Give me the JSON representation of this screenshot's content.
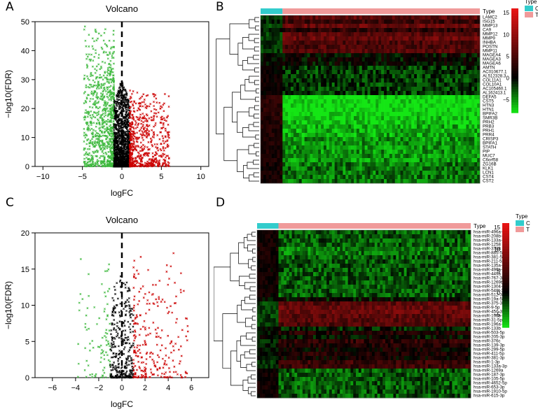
{
  "panels": [
    {
      "letter": "A"
    },
    {
      "letter": "B"
    },
    {
      "letter": "C"
    },
    {
      "letter": "D"
    }
  ],
  "chart_data": [
    {
      "panel": "A",
      "type": "scatter",
      "title": "Volcano",
      "xlabel": "logFC",
      "ylabel": "−log10(FDR)",
      "xlim": [
        -11,
        11
      ],
      "ylim": [
        0,
        50
      ],
      "xticks": [
        -10,
        -5,
        0,
        5,
        10
      ],
      "yticks": [
        0,
        10,
        20,
        30,
        40,
        50
      ],
      "threshold_line_x": 0,
      "colors": {
        "down": "#3cb83c",
        "ns": "#000000",
        "up": "#cc0000"
      },
      "series": [
        {
          "key": "down",
          "count": 900,
          "x_range": [
            -4.8,
            -1.0
          ],
          "y_max": 50
        },
        {
          "key": "ns",
          "count": 1300,
          "x_range": [
            -1.0,
            1.0
          ],
          "y_max": 30
        },
        {
          "key": "up",
          "count": 600,
          "x_range": [
            1.0,
            6.0
          ],
          "y_max": 28
        }
      ]
    },
    {
      "panel": "B",
      "type": "heatmap",
      "legend_title": "Type",
      "groups": [
        {
          "label": "C",
          "color": "#33cccc"
        },
        {
          "label": "T",
          "color": "#f09a9a"
        }
      ],
      "header_label": "Type",
      "colorbar_ticks": [
        15,
        10,
        5,
        0,
        -5
      ],
      "colorbar_range": [
        -8,
        16
      ],
      "rows": [
        "LAMC2",
        "ISG15",
        "MMP13",
        "CA9",
        "MMP12",
        "MMP9",
        "INHBA",
        "POSTN",
        "MMP11",
        "MAGEA4",
        "MAGEA3",
        "MAGEA6",
        "AMTN",
        "AC010677.1",
        "AL512328.3",
        "COL11A1",
        "COL10A1",
        "AC105460.1",
        "AL162413.1",
        "DEFA5",
        "CST5",
        "HTN3",
        "HTN1",
        "BPIFA2",
        "SMR3B",
        "PRH2",
        "PRB3",
        "PRH1",
        "PRR4",
        "CRISP3",
        "BPIFA1",
        "STATH",
        "PIP",
        "MUC7",
        "C6orf58",
        "ZG16B",
        "KLK1",
        "LCN1",
        "CST4",
        "CST2"
      ],
      "row_profile": [
        6,
        4,
        7,
        3,
        6,
        7,
        5,
        5,
        6,
        0,
        0,
        0,
        -2,
        -2,
        -2,
        -2,
        -2,
        -2,
        -2,
        -8,
        -8,
        -8,
        -8,
        -8,
        -7,
        -7,
        -6,
        -6,
        -6,
        -5,
        -5,
        -5,
        -5,
        -5,
        -5,
        -4,
        -4,
        -4,
        -4,
        -4
      ]
    },
    {
      "panel": "C",
      "type": "scatter",
      "title": "Volcano",
      "xlabel": "logFC",
      "ylabel": "−log10(FDR)",
      "xlim": [
        -7.5,
        7.5
      ],
      "ylim": [
        0,
        20
      ],
      "xticks": [
        -6,
        -4,
        -2,
        0,
        2,
        4,
        6
      ],
      "yticks": [
        0,
        5,
        10,
        15,
        20
      ],
      "threshold_line_x": 0,
      "colors": {
        "down": "#3cb83c",
        "ns": "#000000",
        "up": "#cc0000"
      },
      "series": [
        {
          "key": "down",
          "count": 90,
          "x_range": [
            -3.8,
            -1.0
          ],
          "y_max": 19
        },
        {
          "key": "ns",
          "count": 320,
          "x_range": [
            -1.0,
            1.0
          ],
          "y_max": 15
        },
        {
          "key": "up",
          "count": 260,
          "x_range": [
            1.0,
            5.8
          ],
          "y_max": 19
        }
      ]
    },
    {
      "panel": "D",
      "type": "heatmap",
      "legend_title": "Type",
      "groups": [
        {
          "label": "C",
          "color": "#33cccc"
        },
        {
          "label": "T",
          "color": "#f09a9a"
        }
      ],
      "header_label": "Type",
      "colorbar_ticks": [
        15,
        10,
        5,
        0,
        -5
      ],
      "colorbar_range": [
        -8,
        16
      ],
      "rows": [
        "hsa-miR-496a-5p",
        "hsa-miR-208b-3p",
        "hsa-miR-133a-5p",
        "hsa-miR-1258",
        "hsa-miR-3788",
        "hsa-miR-885-5p",
        "hsa-miR-381-5p",
        "hsa-miR-211-5p",
        "hsa-miR-135a-5p",
        "hsa-miR-496a-3p",
        "hsa-miR-449a",
        "hsa-miR-767-3p",
        "hsa-miR-1269b",
        "hsa-miR-1304-3p",
        "hsa-miR-548f-3p",
        "hsa-miR-512-3p",
        "hsa-miR-19a-5p",
        "hsa-miR-375-3p",
        "hsa-miR-9-5p",
        "hsa-miR-450-3p",
        "hsa-miR-196b-5p",
        "hsa-miR-31-5p",
        "hsa-miR-196a-5p",
        "hsa-miR-133b",
        "hsa-miR-503-5p",
        "hsa-miR-205-3p",
        "hsa-miR-376c",
        "hsa-miR-139-3p",
        "hsa-miR-299-5p",
        "hsa-miR-411-5p",
        "hsa-miR-381-3p",
        "hsa-miR-1-3p",
        "hsa-miR-133a-3p",
        "hsa-miR-1269a",
        "hsa-miR-187-3p",
        "hsa-miR-105-5p",
        "hsa-miR-4652-5p",
        "hsa-miR-653-3p",
        "hsa-miR-1910-5p",
        "hsa-miR-615-3p"
      ],
      "row_profile": [
        -3,
        -3,
        -3,
        -3,
        -4,
        -4,
        -3,
        -3,
        -3,
        -3,
        -3,
        -3,
        -3,
        -3,
        -3,
        -3,
        0,
        6,
        7,
        7,
        6,
        6,
        5,
        -1,
        2,
        0,
        3,
        2,
        1,
        2,
        1,
        4,
        4,
        -3,
        -3,
        -3,
        -3,
        -3,
        -3,
        -3
      ]
    }
  ]
}
